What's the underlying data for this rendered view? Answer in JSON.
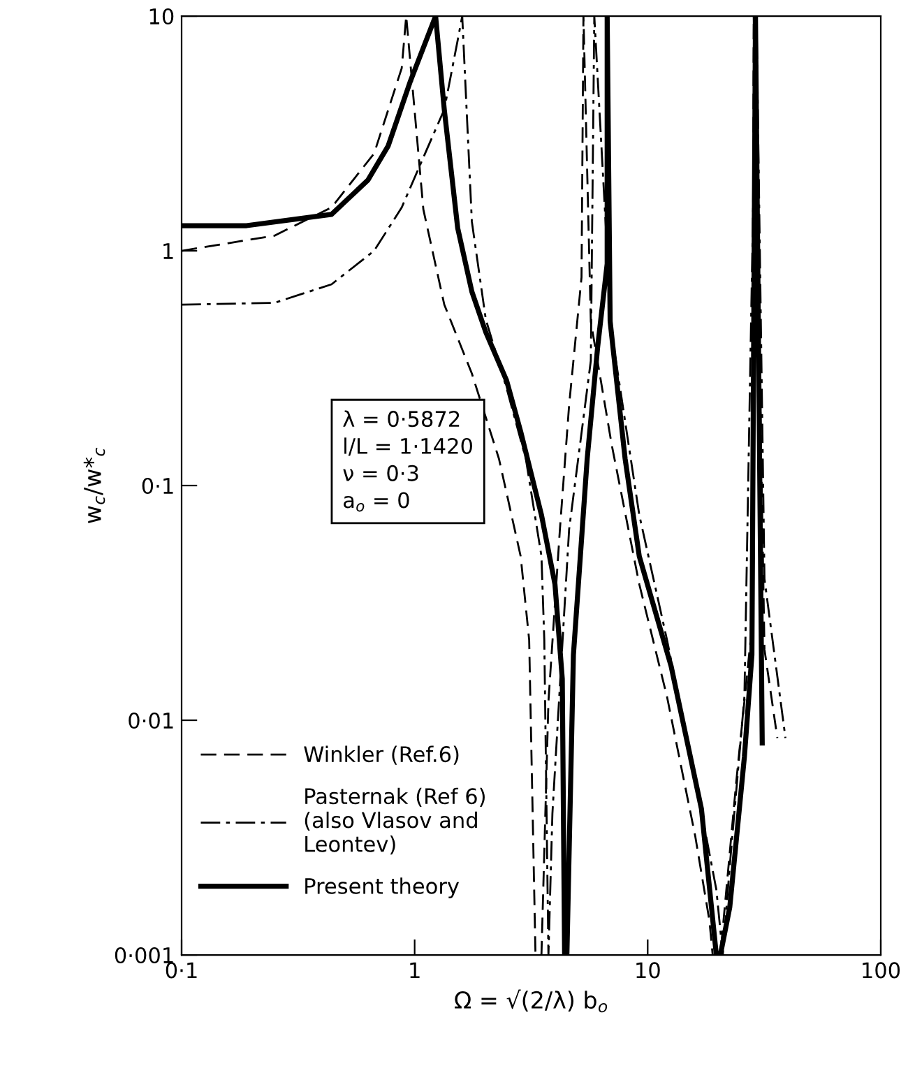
{
  "chart_data": {
    "type": "line",
    "xlabel": "Ω = √(2/λ) b$_{o}$",
    "ylabel": "w$_{c}$/w*$_{c}$",
    "log": "xy",
    "xlim": [
      0.1,
      100
    ],
    "ylim": [
      0.001,
      10
    ],
    "xticks": [
      {
        "value": 0.1,
        "label": "0·1"
      },
      1,
      10,
      100
    ],
    "yticks": [
      {
        "value": 0.001,
        "label": "0·001"
      },
      {
        "value": 0.01,
        "label": "0·01"
      },
      {
        "value": 0.1,
        "label": "0·1"
      },
      1,
      10
    ],
    "grid": false,
    "legend": "bottom left",
    "annotations": [
      "λ = 0·5872\nl/L = 1·1420\nν = 0·3\na$_{o}$ = 0"
    ],
    "series": [
      {
        "name": "Winkler (Ref.6)",
        "color": "#000000",
        "line_style": "dashed",
        "x": [
          0.1,
          0.25,
          0.44,
          0.67,
          0.88,
          0.92,
          0.92,
          1.09,
          1.34,
          1.76,
          2.3,
          2.85,
          3.1,
          3.3,
          3.5,
          3.75,
          4.2,
          4.6,
          5.2,
          5.3,
          5.3,
          5.7,
          7.0,
          9.2,
          12.1,
          16,
          18.4,
          19,
          20.5,
          24,
          28,
          28.5,
          28.5,
          31.7,
          36
        ],
        "values": [
          1.0,
          1.16,
          1.53,
          2.6,
          6,
          10,
          10,
          1.5,
          0.59,
          0.3,
          0.13,
          0.05,
          0.022,
          0.001,
          0.001,
          0.012,
          0.065,
          0.22,
          0.77,
          10,
          10,
          0.5,
          0.15,
          0.038,
          0.0126,
          0.0032,
          0.0014,
          0.001,
          0.001,
          0.0055,
          0.025,
          10,
          10,
          0.02,
          0.0084
        ]
      },
      {
        "name": "Pasternak (Ref 6)\n(also Vlasov and\nLeontev)",
        "color": "#000000",
        "line_style": "dashdot",
        "x": [
          0.1,
          0.25,
          0.44,
          0.67,
          0.88,
          1.09,
          1.34,
          1.53,
          1.6,
          1.6,
          1.76,
          2.02,
          2.48,
          3.0,
          3.5,
          3.6,
          3.75,
          3.9,
          4.6,
          5.7,
          5.9,
          5.9,
          7.0,
          9.2,
          12.1,
          16,
          19.7,
          21,
          22.5,
          26,
          29.3,
          29.3,
          31.7,
          39
        ],
        "values": [
          0.59,
          0.6,
          0.72,
          1.0,
          1.53,
          2.5,
          4,
          7.9,
          10,
          10,
          1.33,
          0.51,
          0.26,
          0.13,
          0.05,
          0.022,
          0.001,
          0.004,
          0.065,
          0.34,
          10,
          10,
          0.45,
          0.075,
          0.022,
          0.0056,
          0.0019,
          0.001,
          0.0024,
          0.0126,
          10,
          10,
          0.04,
          0.0084
        ]
      },
      {
        "name": "Present theory",
        "color": "#000000",
        "line_style": "solid",
        "x": [
          0.1,
          0.19,
          0.44,
          0.63,
          0.77,
          0.96,
          1.23,
          1.23,
          1.34,
          1.53,
          1.76,
          2.02,
          2.48,
          2.85,
          3.5,
          4.0,
          4.3,
          4.4,
          4.5,
          4.8,
          5.5,
          6.1,
          6.7,
          6.7,
          6.9,
          8.0,
          9.2,
          12.6,
          17,
          19.7,
          20.5,
          22.5,
          26,
          28,
          29,
          29,
          31
        ],
        "values": [
          1.28,
          1.28,
          1.43,
          2.0,
          2.8,
          5.3,
          10,
          10,
          4,
          1.25,
          0.67,
          0.45,
          0.28,
          0.17,
          0.075,
          0.038,
          0.015,
          0.001,
          0.001,
          0.019,
          0.13,
          0.39,
          0.88,
          10,
          0.5,
          0.13,
          0.05,
          0.017,
          0.0042,
          0.001,
          0.001,
          0.0016,
          0.007,
          0.019,
          10,
          10,
          0.008
        ]
      }
    ]
  }
}
